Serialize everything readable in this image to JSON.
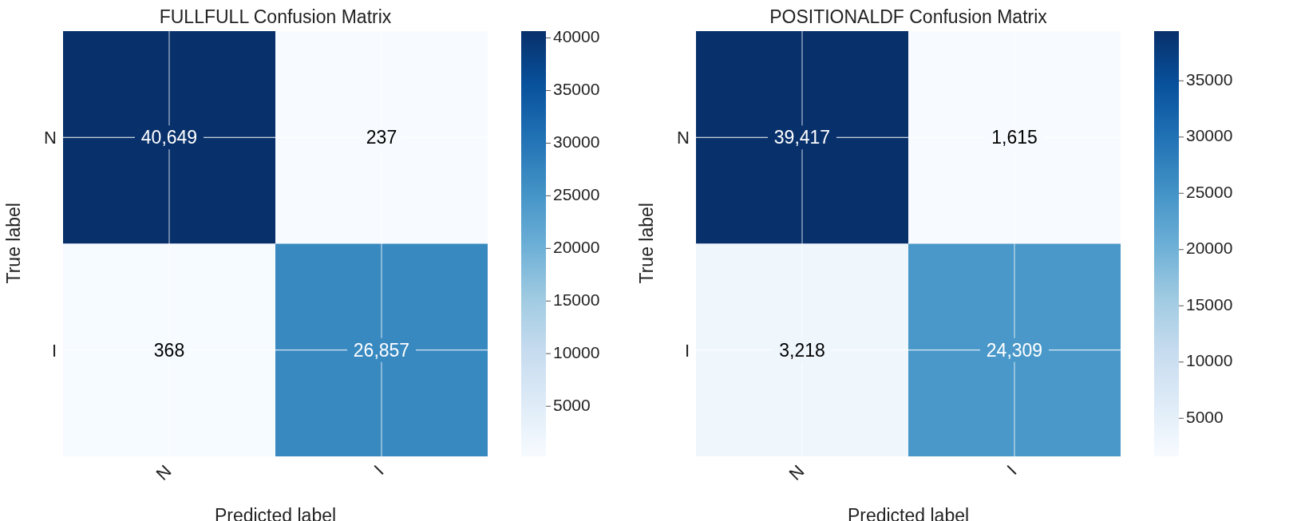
{
  "chart_data": [
    {
      "type": "heatmap",
      "title": "FULLFULL Confusion Matrix",
      "xlabel": "Predicted label",
      "ylabel": "True label",
      "categories": [
        "N",
        "I"
      ],
      "y_categories": [
        "N",
        "I"
      ],
      "cells": [
        [
          40649,
          237
        ],
        [
          368,
          26857
        ]
      ],
      "cell_labels": [
        [
          "40,649",
          "237"
        ],
        [
          "368",
          "26,857"
        ]
      ],
      "clim": [
        237,
        40649
      ],
      "cticks": [
        5000,
        10000,
        15000,
        20000,
        25000,
        30000,
        35000,
        40000
      ],
      "grid": true
    },
    {
      "type": "heatmap",
      "title": "POSITIONALDF Confusion Matrix",
      "xlabel": "Predicted label",
      "ylabel": "True label",
      "categories": [
        "N",
        "I"
      ],
      "y_categories": [
        "N",
        "I"
      ],
      "cells": [
        [
          39417,
          1615
        ],
        [
          3218,
          24309
        ]
      ],
      "cell_labels": [
        [
          "39,417",
          "1,615"
        ],
        [
          "3,218",
          "24,309"
        ]
      ],
      "clim": [
        1615,
        39417
      ],
      "cticks": [
        5000,
        10000,
        15000,
        20000,
        25000,
        30000,
        35000
      ],
      "grid": true
    }
  ]
}
